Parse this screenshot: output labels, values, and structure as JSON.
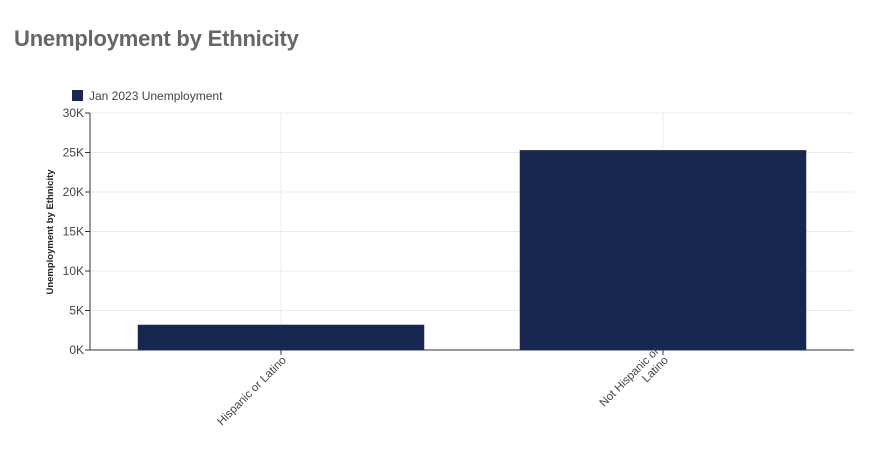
{
  "page": {
    "title": "Unemployment by Ethnicity"
  },
  "chart_data": {
    "type": "bar",
    "title": "Unemployment by Ethnicity",
    "xlabel": "",
    "ylabel": "Unemployment by Ethnicity",
    "categories": [
      {
        "lines": [
          "Hispanic or Latino"
        ]
      },
      {
        "lines": [
          "Not Hispanic or",
          "Latino"
        ]
      }
    ],
    "series": [
      {
        "name": "Jan 2023 Unemployment",
        "color": "#172850",
        "values": [
          3200,
          25300
        ]
      }
    ],
    "ylim": [
      0,
      30000
    ],
    "yticks": [
      {
        "value": 0,
        "label": "0K"
      },
      {
        "value": 5000,
        "label": "5K"
      },
      {
        "value": 10000,
        "label": "10K"
      },
      {
        "value": 15000,
        "label": "15K"
      },
      {
        "value": 20000,
        "label": "20K"
      },
      {
        "value": 25000,
        "label": "25K"
      },
      {
        "value": 30000,
        "label": "30K"
      }
    ],
    "grid": true,
    "legend_position": "top-left"
  }
}
